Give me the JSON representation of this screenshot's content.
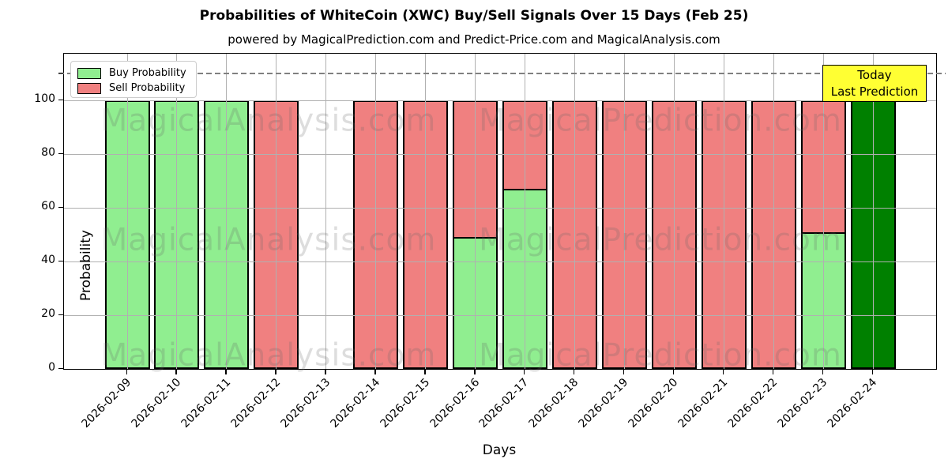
{
  "header": {
    "title": "Probabilities of WhiteCoin (XWC) Buy/Sell Signals Over 15 Days (Feb 25)",
    "subtitle": "powered by MagicalPrediction.com and Predict-Price.com and MagicalAnalysis.com"
  },
  "chart_data": {
    "type": "bar",
    "stacked": true,
    "title": "Probabilities of WhiteCoin (XWC) Buy/Sell Signals Over 15 Days (Feb 25)",
    "subtitle": "powered by MagicalPrediction.com and Predict-Price.com and MagicalAnalysis.com",
    "xlabel": "Days",
    "ylabel": "Probability",
    "categories": [
      "2026-02-09",
      "2026-02-10",
      "2026-02-11",
      "2026-02-12",
      "2026-02-13",
      "2026-02-14",
      "2026-02-15",
      "2026-02-16",
      "2026-02-17",
      "2026-02-18",
      "2026-02-19",
      "2026-02-20",
      "2026-02-21",
      "2026-02-22",
      "2026-02-23",
      "2026-02-24"
    ],
    "series": [
      {
        "name": "Buy Probability",
        "color": "#90EE90",
        "values": [
          100,
          100,
          100,
          0,
          0,
          0,
          0,
          49,
          67,
          0,
          0,
          0,
          0,
          0,
          51,
          100
        ]
      },
      {
        "name": "Sell Probability",
        "color": "#F08080",
        "values": [
          0,
          0,
          0,
          100,
          0,
          100,
          100,
          51,
          33,
          100,
          100,
          100,
          100,
          100,
          49,
          0
        ]
      }
    ],
    "today": {
      "index": 15,
      "color": "#008000",
      "label_line1": "Today",
      "label_line2": "Last Prediction"
    },
    "yticks": [
      0,
      20,
      40,
      60,
      80,
      100
    ],
    "unlabeled_ytick": 110,
    "ylim": [
      0,
      117.4
    ],
    "dashed_line_y": 110,
    "grid": true,
    "legend_position": "upper left",
    "watermarks": [
      "MagicalAnalysis.com",
      "MagicalPrediction.com"
    ]
  },
  "colors": {
    "grid": "#b0b0b0",
    "dashed_line": "#808080",
    "bar_edge": "#000000",
    "annotation_bg": "#FFFF33",
    "annotation_border": "#000000",
    "watermark": "rgba(100,100,100,0.22)",
    "buy": "#90EE90",
    "sell": "#F08080",
    "today_bar": "#008000"
  }
}
